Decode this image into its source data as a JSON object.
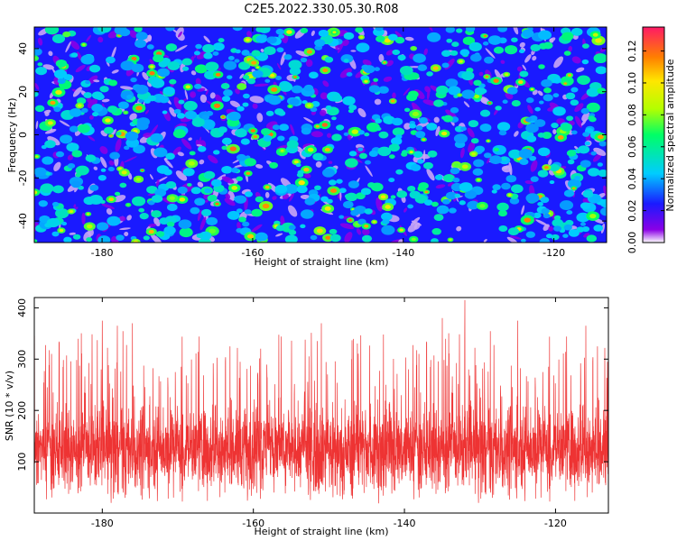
{
  "chart_data": [
    {
      "type": "heatmap",
      "title": "C2E5.2022.330.05.30.R08",
      "xlabel": "Height of straight line (km)",
      "ylabel": "Frequency (Hz)",
      "xlim": [
        -189,
        -113
      ],
      "ylim": [
        -50,
        50
      ],
      "xticks": [
        -180,
        -160,
        -140,
        -120
      ],
      "yticks": [
        -40,
        -20,
        0,
        20,
        40
      ],
      "colorbar": {
        "label": "Normalized spectral amplitude",
        "range": [
          0.0,
          0.135
        ],
        "ticks": [
          "0.00",
          "0.02",
          "0.04",
          "0.06",
          "0.08",
          "0.10",
          "0.12"
        ],
        "colormap": [
          "#ffffff",
          "#8a00e6",
          "#1a1aff",
          "#00ccff",
          "#00ff66",
          "#b3ff00",
          "#ffe600",
          "#ff7f00",
          "#ff1a66"
        ]
      },
      "description_values": "dense random speckle, mostly 0.02-0.05 with sparse peaks up to ~0.12"
    },
    {
      "type": "line",
      "title": "",
      "xlabel": "Height of straight line (km)",
      "ylabel": "SNR (10 * v/v)",
      "xlim": [
        -189,
        -113
      ],
      "ylim": [
        0,
        420
      ],
      "xticks": [
        -180,
        -160,
        -140,
        -120
      ],
      "yticks": [
        100,
        200,
        300,
        400
      ],
      "series": [
        {
          "name": "SNR",
          "color": "#ee3333",
          "mean": 125,
          "typical_range": [
            60,
            250
          ],
          "peaks": [
            {
              "x": -180,
              "y": 375
            },
            {
              "x": -178,
              "y": 365
            },
            {
              "x": -176,
              "y": 370
            },
            {
              "x": -151,
              "y": 370
            },
            {
              "x": -135,
              "y": 380
            },
            {
              "x": -132,
              "y": 415
            },
            {
              "x": -125,
              "y": 375
            },
            {
              "x": -116,
              "y": 365
            }
          ]
        }
      ]
    }
  ]
}
